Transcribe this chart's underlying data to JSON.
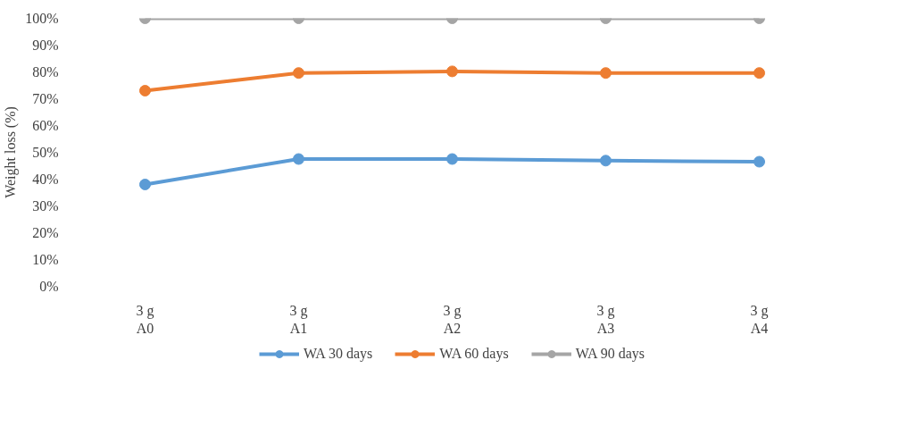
{
  "chart_data": {
    "type": "line",
    "ylabel": "Weight loss (%)",
    "categories": [
      "3 g\nA0",
      "3 g\nA1",
      "3 g\nA2",
      "3 g\nA3",
      "3 g\nA4"
    ],
    "series": [
      {
        "name": "WA 30 days",
        "color": "#5b9bd5",
        "values": [
          38.0,
          47.5,
          47.5,
          46.9,
          46.5
        ]
      },
      {
        "name": "WA 60 days",
        "color": "#ed7d31",
        "values": [
          73.0,
          79.6,
          80.2,
          79.6,
          79.6
        ]
      },
      {
        "name": "WA 90 days",
        "color": "#a5a5a5",
        "values": [
          100,
          100,
          100,
          100,
          100
        ]
      }
    ],
    "ylim": [
      0,
      100
    ],
    "yticks": [
      {
        "value": 0,
        "label": "0%"
      },
      {
        "value": 10,
        "label": "10%"
      },
      {
        "value": 20,
        "label": "20%"
      },
      {
        "value": 30,
        "label": "30%"
      },
      {
        "value": 40,
        "label": "40%"
      },
      {
        "value": 50,
        "label": "50%"
      },
      {
        "value": 60,
        "label": "60%"
      },
      {
        "value": 70,
        "label": "70%"
      },
      {
        "value": 80,
        "label": "80%"
      },
      {
        "value": 90,
        "label": "90%"
      },
      {
        "value": 100,
        "label": "100%"
      }
    ],
    "grid": false,
    "legend": "bottom",
    "marker": "circle",
    "line_style": "solid"
  }
}
